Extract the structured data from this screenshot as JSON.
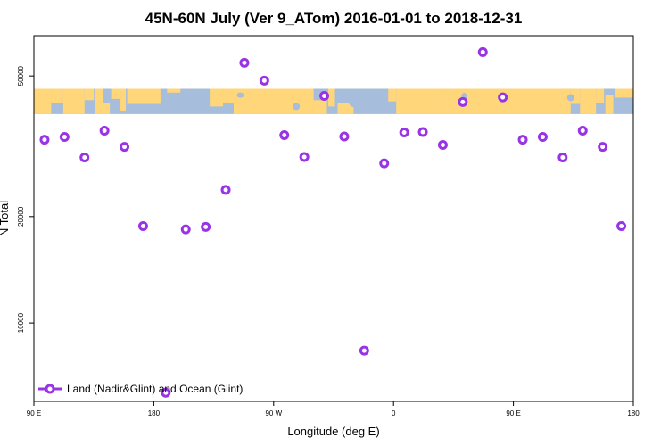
{
  "chart_data": {
    "type": "scatter",
    "title": "45N-60N July (Ver 9_ATom)   2016-01-01 to 2018-12-31",
    "xlabel": "Longitude (deg E)",
    "ylabel": "N Total",
    "x_axis": {
      "range_deg": [
        90,
        540
      ],
      "ticks": [
        {
          "value": 90,
          "label": "90 E"
        },
        {
          "value": 180,
          "label": "180"
        },
        {
          "value": 270,
          "label": "90 W"
        },
        {
          "value": 360,
          "label": "0"
        },
        {
          "value": 450,
          "label": "90 E"
        },
        {
          "value": 540,
          "label": "180"
        }
      ]
    },
    "y_axis": {
      "scale": "log",
      "ylim": [
        6000,
        65000
      ],
      "ticks": [
        {
          "value": 10000,
          "label": "10000"
        },
        {
          "value": 20000,
          "label": "20000"
        },
        {
          "value": 50000,
          "label": "50000"
        }
      ]
    },
    "map_strip": {
      "lat_range": "45N-60N",
      "y_range": [
        39000,
        46000
      ],
      "ocean_color": "#a6bddb",
      "land_color": "#ffd67a"
    },
    "series": [
      {
        "name": "Land (Nadir&Glint) and Ocean (Glint)",
        "color": "#9933e6",
        "points": [
          {
            "x": 98,
            "y": 33000
          },
          {
            "x": 113,
            "y": 33600
          },
          {
            "x": 128,
            "y": 29400
          },
          {
            "x": 143,
            "y": 35000
          },
          {
            "x": 158,
            "y": 31500
          },
          {
            "x": 172,
            "y": 18800
          },
          {
            "x": 204,
            "y": 18400
          },
          {
            "x": 219,
            "y": 18700
          },
          {
            "x": 234,
            "y": 23800
          },
          {
            "x": 248,
            "y": 54500
          },
          {
            "x": 263,
            "y": 48500
          },
          {
            "x": 278,
            "y": 34000
          },
          {
            "x": 293,
            "y": 29500
          },
          {
            "x": 308,
            "y": 43900
          },
          {
            "x": 323,
            "y": 33700
          },
          {
            "x": 338,
            "y": 8350
          },
          {
            "x": 353,
            "y": 28300
          },
          {
            "x": 368,
            "y": 34600
          },
          {
            "x": 382,
            "y": 34700
          },
          {
            "x": 397,
            "y": 31900
          },
          {
            "x": 412,
            "y": 42200
          },
          {
            "x": 427,
            "y": 58400
          },
          {
            "x": 442,
            "y": 43500
          },
          {
            "x": 457,
            "y": 33000
          },
          {
            "x": 472,
            "y": 33600
          },
          {
            "x": 487,
            "y": 29400
          },
          {
            "x": 502,
            "y": 35000
          },
          {
            "x": 517,
            "y": 31500
          },
          {
            "x": 531,
            "y": 18800
          },
          {
            "x": 189,
            "y": 6350
          }
        ]
      }
    ],
    "legend": {
      "position": "bottom-left",
      "label": "Land (Nadir&Glint) and Ocean (Glint)"
    }
  }
}
